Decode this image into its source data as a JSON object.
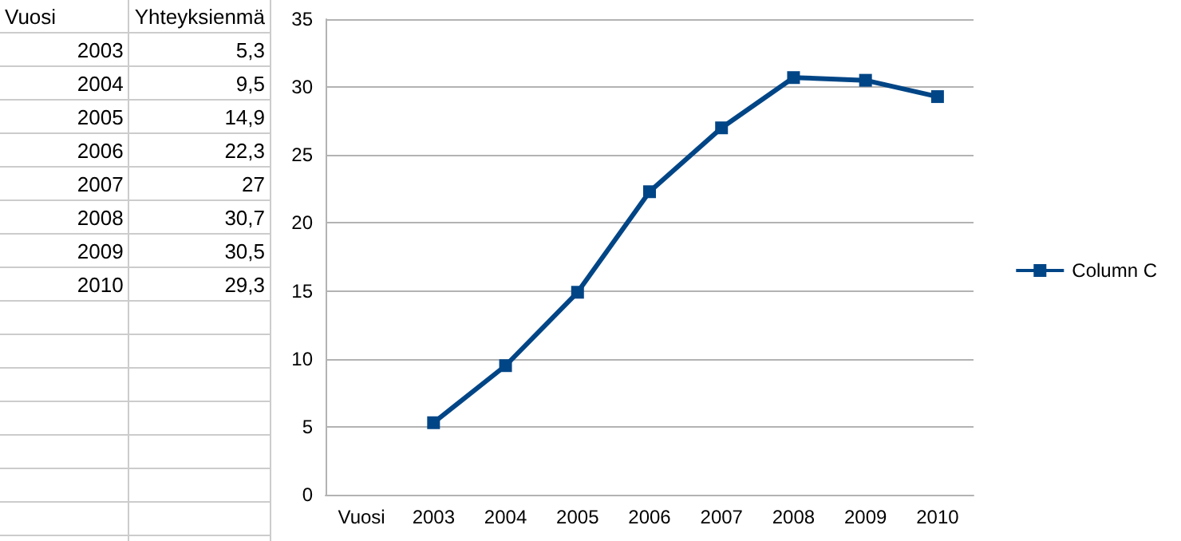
{
  "chart_data": {
    "type": "line",
    "annotations": [
      "Vuosi",
      "Yhteyksienmä",
      "5,3",
      "9,5",
      "14,9",
      "22,3",
      "27",
      "30,7",
      "30,5",
      "29,3"
    ],
    "categories": [
      "Vuosi",
      "2003",
      "2004",
      "2005",
      "2006",
      "2007",
      "2008",
      "2009",
      "2010"
    ],
    "series": [
      {
        "name": "Column C",
        "color": "#004586",
        "values": [
          null,
          5.3,
          9.5,
          14.9,
          22.3,
          27,
          30.7,
          30.5,
          29.3
        ]
      }
    ],
    "ylim": [
      0,
      35
    ],
    "yticks": [
      0,
      5,
      10,
      15,
      20,
      25,
      30,
      35
    ],
    "grid": "y",
    "legend": "right",
    "marker": "square",
    "line_style": "solid"
  }
}
